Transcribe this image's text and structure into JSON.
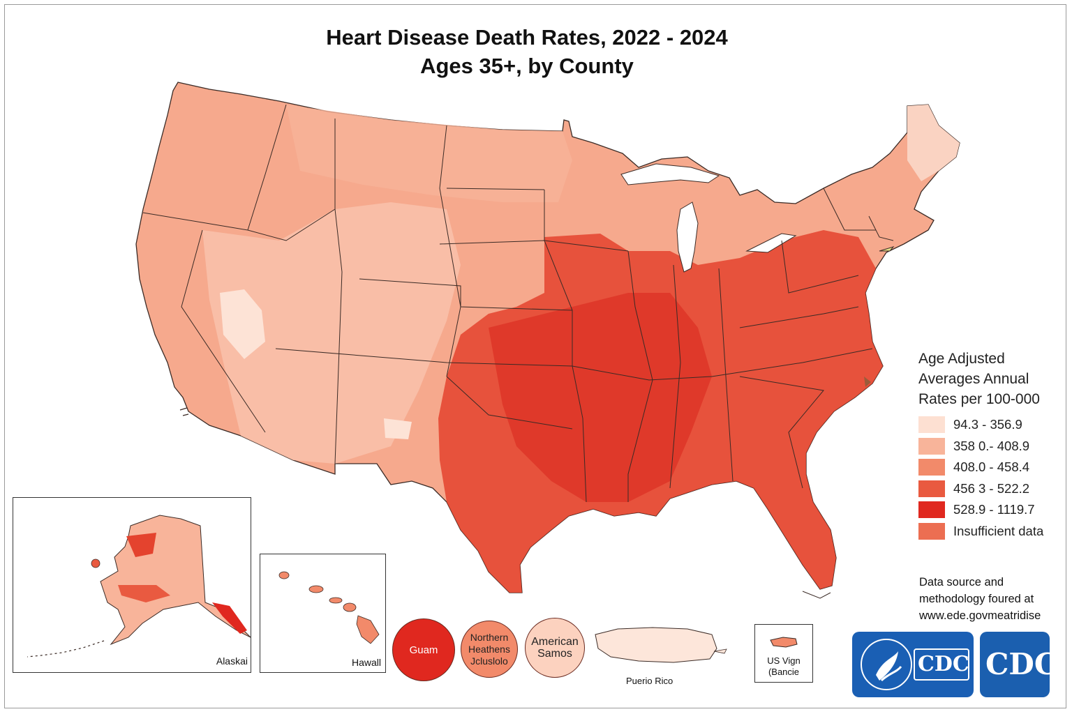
{
  "title": {
    "line1": "Heart Disease Death Rates, 2022 - 2024",
    "line2": "Ages 35+, by County"
  },
  "legend": {
    "title_lines": [
      "Age Adjusted",
      "Averages Annual",
      "Rates per 100-000"
    ],
    "items": [
      {
        "label": "94.3 - 356.9",
        "color": "#fde0d2"
      },
      {
        "label": "358 0.- 408.9",
        "color": "#f8b49a"
      },
      {
        "label": "408.0 - 458.4",
        "color": "#f28a6a"
      },
      {
        "label": "456 3 - 522.2",
        "color": "#e95a40"
      },
      {
        "label": "528.9 - 1119.7",
        "color": "#e0281f"
      },
      {
        "label": "Insufficient data",
        "color": "#ec6e52"
      }
    ]
  },
  "source_lines": [
    "Data source and",
    "methodology foured at",
    "www.ede.govmeatridise"
  ],
  "insets": {
    "alaska": "Alaskai",
    "hawaii": "Hawall",
    "guam": "Guam",
    "northern_mariana_lines": [
      "Northern",
      "Heathens",
      "Jcluslolo"
    ],
    "american_samoa_lines": [
      "American",
      "Samos"
    ],
    "puerto_rico": "Puerio Rico",
    "virgin_islands_lines": [
      "US Vign",
      "(Bancie"
    ]
  },
  "territory_colors": {
    "guam": "#e0281f",
    "northern_mariana": "#f28a6a",
    "american_samoa": "#fcd2bf",
    "puerto_rico": "#fde6da",
    "virgin_islands": "#f28a6a"
  },
  "logos": {
    "logo1_text": "CDC",
    "logo2_text": "CDC"
  }
}
